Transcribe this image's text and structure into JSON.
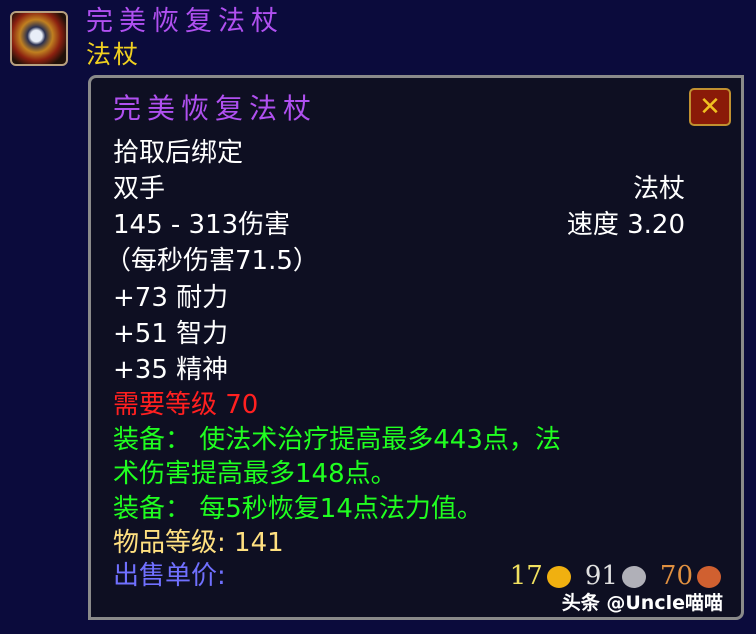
{
  "header": {
    "title": "完美恢复法杖",
    "type": "法杖",
    "icon": "staff-item-icon"
  },
  "tooltip": {
    "title": "完美恢复法杖",
    "bind": "拾取后绑定",
    "slot": "双手",
    "weapon_type": "法杖",
    "damage": "145 - 313伤害",
    "speed": "速度 3.20",
    "dps": "（每秒伤害71.5）",
    "stats": [
      "+73 耐力",
      "+51 智力",
      "+35 精神"
    ],
    "requirement": "需要等级 70",
    "equip1_a": "装备： 使法术治疗提高最多443点，法",
    "equip1_b": "术伤害提高最多148点。",
    "equip2": "装备： 每5秒恢复14点法力值。",
    "item_level": "物品等级: 141",
    "sell_label": "出售单价:",
    "gold": "17",
    "silver": "91",
    "copper": "70"
  },
  "watermark": "头条 @Uncle喵喵",
  "colors": {
    "epic": "#b050f0",
    "requirement": "#ff2020",
    "equip": "#20ff20",
    "item_level": "#ffe080",
    "sell": "#7070ff"
  }
}
